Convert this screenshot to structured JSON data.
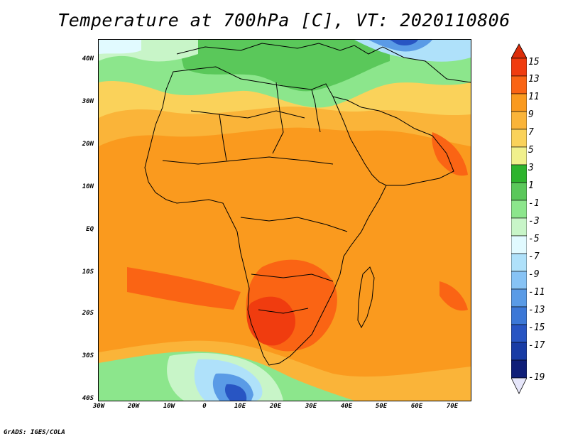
{
  "title": "Temperature at 700hPa [C], VT: 2020110806",
  "credit": "GrADS: IGES/COLA",
  "axes": {
    "y_ticks": [
      "40N",
      "30N",
      "20N",
      "10N",
      "EQ",
      "10S",
      "20S",
      "30S",
      "40S"
    ],
    "x_ticks": [
      "30W",
      "20W",
      "10W",
      "0",
      "10E",
      "20E",
      "30E",
      "40E",
      "50E",
      "60E",
      "70E"
    ]
  },
  "colorbar": {
    "labels": [
      "15",
      "13",
      "11",
      "9",
      "7",
      "5",
      "3",
      "1",
      "-1",
      "-3",
      "-5",
      "-7",
      "-9",
      "-11",
      "-13",
      "-15",
      "-17",
      "-19"
    ],
    "colors": [
      "#f03c0f",
      "#fa6414",
      "#fa9a1e",
      "#fab439",
      "#fad25a",
      "#f0f08c",
      "#2db42d",
      "#5ac85a",
      "#8ce68c",
      "#c8f5c8",
      "#e1faff",
      "#afe1fa",
      "#87c3f5",
      "#5a9be6",
      "#3c78d7",
      "#2855c3",
      "#193ca5",
      "#0f1e78"
    ],
    "top_arrow_color": "#dc2d0a",
    "bottom_arrow_color": "#e6e6fa"
  },
  "field_colors": {
    "hot": "#f03c0f",
    "warm": "#fa6414",
    "orange": "#fa9a1e",
    "light_orange": "#fab439",
    "yellow": "#fad25a",
    "pale_yellow": "#f0f08c",
    "green": "#5ac85a",
    "light_green": "#8ce68c",
    "pale_green": "#c8f5c8",
    "pale_blue": "#e1faff",
    "light_blue": "#afe1fa",
    "blue": "#5a9be6",
    "deep_blue": "#2855c3"
  }
}
